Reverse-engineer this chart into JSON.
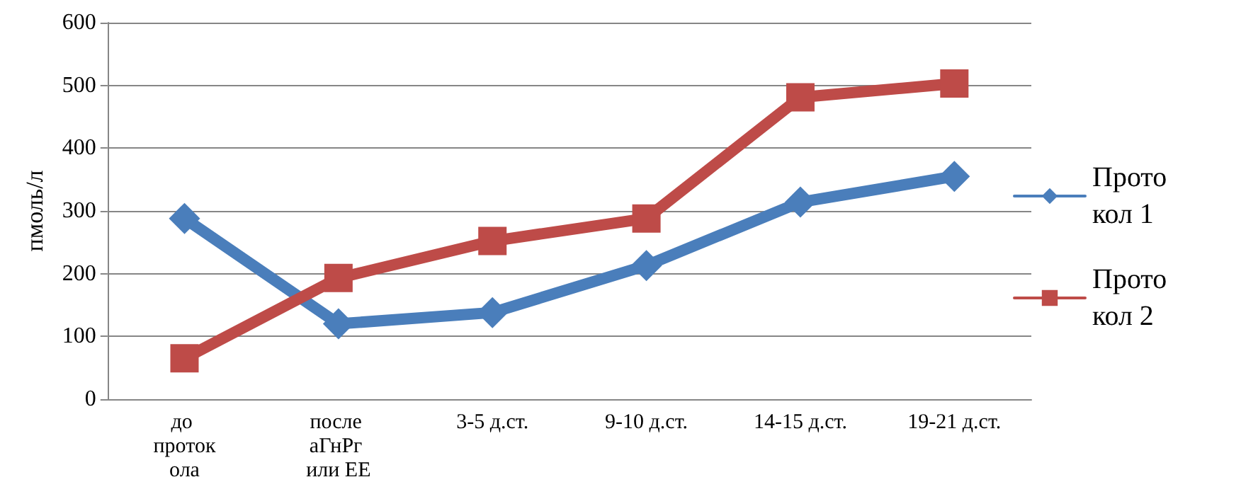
{
  "chart_data": {
    "type": "line",
    "ylabel": "пмоль/л",
    "categories": [
      "до протокола",
      "после аГнРг или ЕЕ",
      "3-5 д.ст.",
      "9-10 д.ст.",
      "14-15 д.ст.",
      "19-21 д.ст."
    ],
    "series": [
      {
        "name": "Протокол 1",
        "color": "#4a7ebb",
        "marker": "diamond",
        "values": [
          288,
          120,
          138,
          213,
          314,
          355
        ]
      },
      {
        "name": "Протокол 2",
        "color": "#be4b48",
        "marker": "square",
        "values": [
          65,
          193,
          252,
          288,
          481,
          503
        ]
      }
    ],
    "ylim": [
      0,
      600
    ],
    "yticks": [
      0,
      100,
      200,
      300,
      400,
      500,
      600
    ],
    "grid": "y",
    "legend": "right"
  }
}
